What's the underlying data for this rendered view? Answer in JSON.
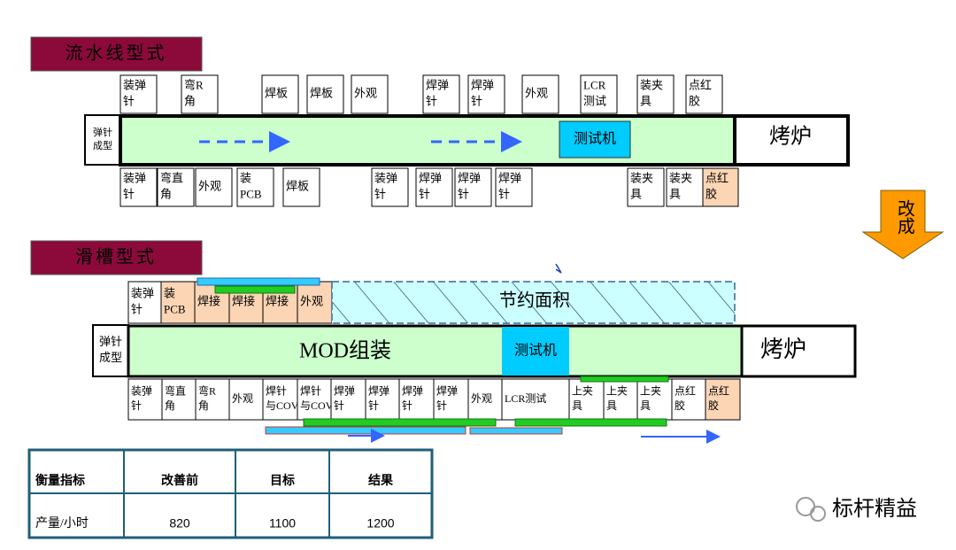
{
  "section1": {
    "title": "流水线型式",
    "top_stations": [
      [
        "装弹",
        "针"
      ],
      [
        "弯R",
        "角"
      ],
      [
        "焊板"
      ],
      [
        "焊板"
      ],
      [
        "外观"
      ],
      [
        "焊弹",
        "针"
      ],
      [
        "焊弹",
        "针"
      ],
      [
        "外观"
      ],
      [
        "LCR",
        "测试"
      ],
      [
        "装夹",
        "具"
      ],
      [
        "点红",
        "胶"
      ]
    ],
    "side_label": [
      "弹针",
      "成型"
    ],
    "test_machine": "测试机",
    "oven": "烤炉",
    "bottom_stations": [
      [
        "装弹",
        "针"
      ],
      [
        "弯直",
        "角"
      ],
      [
        "外观"
      ],
      [
        "装",
        "PCB"
      ],
      [
        "焊板"
      ],
      [
        "装弹",
        "针"
      ],
      [
        "焊弹",
        "针"
      ],
      [
        "焊弹",
        "针"
      ],
      [
        "焊弹",
        "针"
      ],
      [
        "装夹",
        "具"
      ],
      [
        "装夹",
        "具"
      ],
      [
        "点红",
        "胶"
      ]
    ]
  },
  "change_arrow": "改成",
  "section2": {
    "title": "滑槽型式",
    "top_stations": [
      [
        "装弹",
        "针"
      ],
      [
        "装",
        "PCB"
      ],
      [
        "焊接"
      ],
      [
        "焊接"
      ],
      [
        "焊接"
      ],
      [
        "外观"
      ]
    ],
    "saved_area": "节约面积",
    "side_label": [
      "弹针",
      "成型"
    ],
    "assembly": "MOD组装",
    "test_machine": "测试机",
    "oven": "烤炉",
    "bottom_stations": [
      [
        "装弹",
        "针"
      ],
      [
        "弯直",
        "角"
      ],
      [
        "弯R",
        "角"
      ],
      [
        "外观"
      ],
      [
        "焊针",
        "与COV"
      ],
      [
        "焊针",
        "与COV"
      ],
      [
        "焊弹",
        "针"
      ],
      [
        "焊弹",
        "针"
      ],
      [
        "焊弹",
        "针"
      ],
      [
        "焊弹",
        "针"
      ],
      [
        "外观"
      ],
      [
        "LCR测试"
      ],
      [
        "上夹",
        "具"
      ],
      [
        "上夹",
        "具"
      ],
      [
        "上夹",
        "具"
      ],
      [
        "点红",
        "胶"
      ],
      [
        "点红",
        "胶"
      ]
    ]
  },
  "table": {
    "header": [
      "衡量指标",
      "改善前",
      "目标",
      "结果"
    ],
    "rows": [
      [
        "产量/小时",
        820,
        1100,
        1200
      ]
    ]
  },
  "watermark": "标杆精益"
}
